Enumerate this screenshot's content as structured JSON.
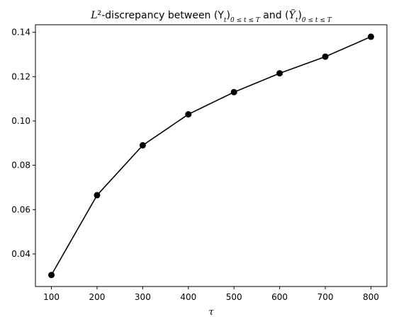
{
  "chart_data": {
    "type": "line",
    "title": {
      "prefix": "L",
      "prefix_sup": "2",
      "middle": "-discrepancy between (Y",
      "sub1": "t",
      "paren_close": ")",
      "range1": "0 ≤ t ≤ T",
      "and_text": " and (",
      "ytilde": "Ỹ",
      "sub2": "t",
      "paren_close2": ")",
      "range2": "0 ≤ t ≤ T"
    },
    "xlabel": "τ",
    "ylabel": "",
    "x": [
      100,
      200,
      300,
      400,
      500,
      600,
      700,
      800
    ],
    "series": [
      {
        "values": [
          0.0305,
          0.0665,
          0.089,
          0.103,
          0.113,
          0.1215,
          0.129,
          0.138
        ],
        "color": "#000000",
        "marker": "circle"
      }
    ],
    "xticks": [
      100,
      200,
      300,
      400,
      500,
      600,
      700,
      800
    ],
    "yticks": [
      0.04,
      0.06,
      0.08,
      0.1,
      0.12,
      0.14
    ],
    "ytick_labels": [
      "0.04",
      "0.06",
      "0.08",
      "0.10",
      "0.12",
      "0.14"
    ],
    "xlim": [
      65,
      835
    ],
    "ylim": [
      0.0253,
      0.1434
    ],
    "grid": false
  }
}
